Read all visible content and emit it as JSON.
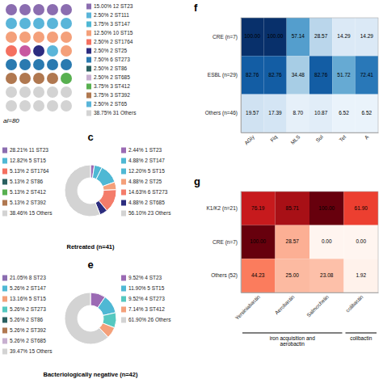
{
  "chart_data": [
    {
      "type": "waffle",
      "title": "al=80",
      "dot_colors": [
        [
          "#8b6db0",
          "#8b6db0",
          "#8b6db0",
          "#8b6db0",
          "#8b6db0"
        ],
        [
          "#5ab5d9",
          "#5ab5d9",
          "#5ab5d9",
          "#5ab5d9",
          "#5ab5d9"
        ],
        [
          "#f4a07a",
          "#f4a07a",
          "#f4a07a",
          "#f4a07a",
          "#f4a07a"
        ],
        [
          "#f47060",
          "#c858a0",
          "#2c2c80",
          "#5ab5d9",
          "#f4a07a"
        ],
        [
          "#2a7ab0",
          "#2a7ab0",
          "#2a7ab0",
          "#2a7ab0",
          "#2a7ab0"
        ],
        [
          "#b07850",
          "#b07850",
          "#b07850",
          "#b07850",
          "#58b050"
        ],
        [
          "#d3d3d3",
          "#d3d3d3",
          "#d3d3d3",
          "#d3d3d3",
          "#d3d3d3"
        ],
        [
          "#d3d3d3",
          "#d3d3d3",
          "#d3d3d3",
          "#d3d3d3",
          "#d3d3d3"
        ]
      ],
      "categories": [
        "15.00%  12 ST23",
        "2.50%  2 ST111",
        "3.75%  3 ST147",
        "12.50%  10 ST15",
        "2.50%  2 ST1764",
        "2.50%  2 ST25",
        "7.50%  6 ST273",
        "2.50%  2 ST86",
        "2.50%  2 ST685",
        "3.75%  3 ST412",
        "3.75%  3 ST392",
        "2.50%  2 ST65",
        "38.75%  31 Others"
      ],
      "colors": [
        "#8b6db0",
        "#5ab5d9",
        "#4fb8d4",
        "#f4a07a",
        "#f47060",
        "#2c2c80",
        "#2a7ab0",
        "#2a6060",
        "#c8b0d0",
        "#58b050",
        "#b07850",
        "#5ab5d9",
        "#d3d3d3"
      ],
      "legend": "right"
    },
    {
      "type": "pie",
      "panel_label": "c",
      "title": "Retreated (n=41)",
      "categories": [
        "2.44%  1 ST23",
        "4.88%  2 ST147",
        "12.20%  5 ST15",
        "4.88%  2 ST25",
        "14.63%  6 ST273",
        "4.88%  2 ST685",
        "56.10%  23 Others"
      ],
      "values": [
        2.44,
        4.88,
        12.2,
        4.88,
        14.63,
        4.88,
        56.1
      ],
      "colors": [
        "#9b6ab4",
        "#4fb8d4",
        "#4fb8d4",
        "#f4a07a",
        "#f47c6a",
        "#2c2c7e",
        "#d3d3d3"
      ],
      "legend": "right",
      "annotations": [
        {
          "text": "28.21%  11 ST23",
          "color": "#8b6db0"
        },
        {
          "text": "12.82%  5 ST15",
          "color": "#4fb8d4"
        },
        {
          "text": "5.13%  2 ST1764",
          "color": "#f47060"
        },
        {
          "text": "5.13%  2 ST86",
          "color": "#2a6060"
        },
        {
          "text": "5.13%  2 ST412",
          "color": "#58b050"
        },
        {
          "text": "5.13%  2 ST392",
          "color": "#b07850"
        },
        {
          "text": "38.46%  15 Others",
          "color": "#d3d3d3"
        }
      ]
    },
    {
      "type": "pie",
      "panel_label": "e",
      "title": "Bacteriologically negative (n=42)",
      "categories": [
        "9.52%  4 ST23",
        "11.90%  5 ST15",
        "9.52%  4 ST273",
        "7.14%  3 ST412",
        "61.90%  26 Others"
      ],
      "values": [
        9.52,
        11.9,
        9.52,
        7.14,
        61.9
      ],
      "colors": [
        "#9b6ab4",
        "#4fb8d4",
        "#55c8c0",
        "#f4a07a",
        "#d3d3d3"
      ],
      "legend": "right",
      "annotations": [
        {
          "text": "21.05%  8 ST23",
          "color": "#8b6db0"
        },
        {
          "text": "5.26%  2 ST147",
          "color": "#4fb8d4"
        },
        {
          "text": "13.16%  5 ST15",
          "color": "#f4a07a"
        },
        {
          "text": "5.26%  2 ST273",
          "color": "#55c8c0"
        },
        {
          "text": "5.26%  2 ST86",
          "color": "#2a6060"
        },
        {
          "text": "5.26%  2 ST392",
          "color": "#b07850"
        },
        {
          "text": "5.26%  2 ST685",
          "color": "#c8b0d0"
        },
        {
          "text": "39.47%  15 Others",
          "color": "#d3d3d3"
        }
      ]
    },
    {
      "type": "heatmap",
      "title": "f",
      "categories": [
        "AGly",
        "Flq",
        "MLS",
        "Sul",
        "Tet",
        "A"
      ],
      "rows": [
        "CRE (n=7)",
        "ESBL (n=29)",
        "Others (n=46)"
      ],
      "values": [
        [
          100.0,
          100.0,
          57.14,
          28.57,
          14.29,
          14.29
        ],
        [
          82.76,
          82.76,
          34.48,
          82.76,
          51.72,
          72.41
        ],
        [
          19.57,
          17.39,
          8.7,
          10.87,
          6.52,
          6.52
        ]
      ],
      "value_labels": [
        [
          "100.00",
          "100.00",
          "57.14",
          "28.57",
          "14.29",
          "14.29"
        ],
        [
          "82.76",
          "82.76",
          "34.48",
          "82.76",
          "51.72",
          "72.41"
        ],
        [
          "19.57",
          "17.39",
          "8.70",
          "10.87",
          "6.52",
          "6.52"
        ]
      ],
      "color": "Blues",
      "color_domain": [
        0,
        100
      ],
      "data_labels": true
    },
    {
      "type": "heatmap",
      "title": "g",
      "categories": [
        "Yersiniabactin",
        "Aerobactin",
        "Salmochelin",
        "colibactin"
      ],
      "rows": [
        "K1/K2 (n=21)",
        "CRE (n=7)",
        "Others (52)"
      ],
      "values": [
        [
          76.19,
          85.71,
          100.0,
          61.9
        ],
        [
          100.0,
          28.57,
          0.0,
          0.0
        ],
        [
          44.23,
          25.0,
          23.08,
          1.92
        ]
      ],
      "value_labels": [
        [
          "76.19",
          "85.71",
          "100.00",
          "61.90"
        ],
        [
          "100.00",
          "28.57",
          "0.00",
          "0.00"
        ],
        [
          "44.23",
          "25.00",
          "23.08",
          "1.92"
        ]
      ],
      "color": "Reds",
      "color_domain": [
        0,
        100
      ],
      "data_labels": true,
      "groups": [
        {
          "label": "iron acquisition and\naerobactin",
          "categories": [
            "Yersiniabactin",
            "Aerobactin",
            "Salmochelin"
          ]
        },
        {
          "label": "colibactin",
          "categories": [
            "colibactin"
          ]
        }
      ]
    }
  ]
}
